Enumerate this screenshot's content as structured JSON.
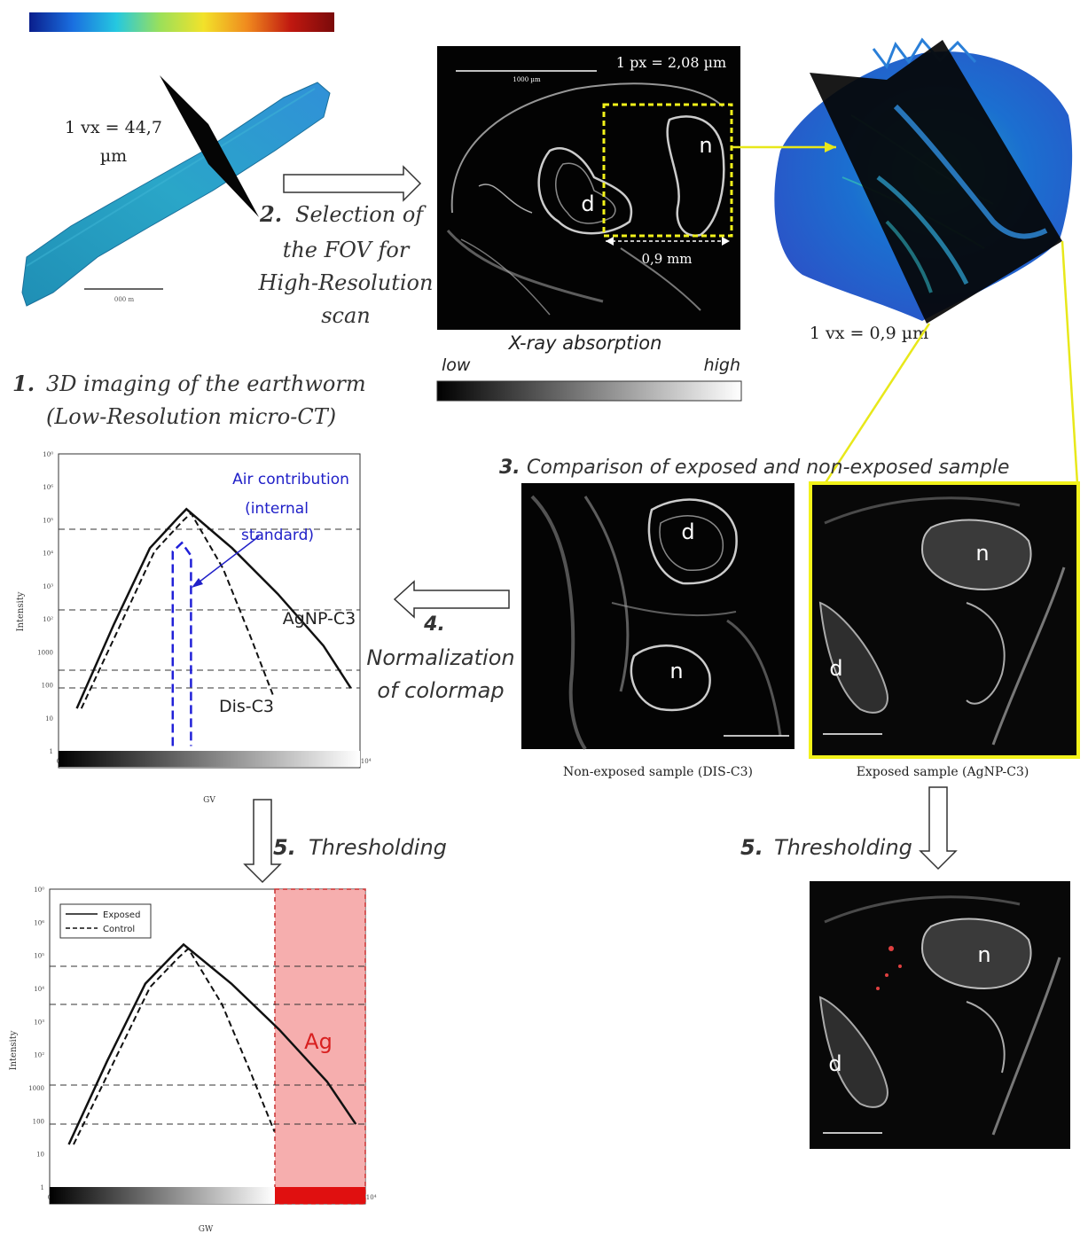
{
  "colorbar": {
    "stops": [
      "#0a1e8c",
      "#1a6fe0",
      "#25c8e0",
      "#9be05a",
      "#f2e22a",
      "#f08a1e",
      "#c01810",
      "#7a0a0a"
    ]
  },
  "low_res": {
    "voxel_label": "1 vx = 44,7",
    "voxel_unit": "µm",
    "scale_label": "000 m"
  },
  "step1": {
    "num": "1.",
    "line1": "3D imaging of the earthworm",
    "line2": "(Low-Resolution micro-CT)"
  },
  "step2": {
    "num": "2.",
    "line1": "Selection of",
    "line2": "the FOV for",
    "line3": "High-Resolution",
    "line4": "scan"
  },
  "slice_top": {
    "pixel_label": "1 px = 2,08 µm",
    "scale_label": "1000 µm",
    "fov_label": "0,9 mm",
    "label_d": "d",
    "label_n": "n"
  },
  "xray": {
    "title": "X-ray absorption",
    "low": "low",
    "high": "high"
  },
  "high_res": {
    "voxel_label": "1 vx = 0,9 µm"
  },
  "step3": {
    "num": "3.",
    "text": "Comparison of exposed and non-exposed sample"
  },
  "step4": {
    "num": "4.",
    "line1": "Normalization",
    "line2": "of colormap"
  },
  "step5": {
    "num": "5.",
    "text": "Thresholding"
  },
  "non_exposed": {
    "caption": "Non-exposed sample (DIS-C3)",
    "label_d": "d",
    "label_n": "n"
  },
  "exposed": {
    "caption": "Exposed sample (AgNP-C3)",
    "label_d": "d",
    "label_n": "n"
  },
  "thresholded": {
    "label_d": "d",
    "label_n": "n"
  },
  "chart_data": [
    {
      "type": "line",
      "ylabel": "Intensity",
      "xlabel": "GV",
      "y_scale": "log",
      "y_ticks": [
        "10⁰",
        "10⁶",
        "10⁵",
        "10⁴",
        "10³",
        "10²",
        "1000",
        "100",
        "10",
        "1"
      ],
      "x_ticks": [
        "0",
        "8000",
        "1.6·10⁴",
        "2.4·10⁴",
        "3.2·10⁴",
        "4·10⁴",
        "4.8·10⁴",
        "5.6·10⁴",
        "6.4·10⁴"
      ],
      "annotations": [
        "Air contribution",
        "(internal",
        "standard)"
      ],
      "series": [
        {
          "name": "AgNP-C3",
          "style": "solid",
          "x": [
            4000,
            12000,
            20000,
            26000,
            28000,
            38000,
            48000,
            58000,
            64000
          ],
          "y": [
            10,
            900,
            60000,
            300000,
            500000,
            60000,
            5000,
            300,
            30
          ]
        },
        {
          "name": "Dis-C3",
          "style": "dashed",
          "x": [
            5000,
            13000,
            21000,
            27000,
            29000,
            36000,
            42000,
            47000
          ],
          "y": [
            10,
            700,
            50000,
            250000,
            400000,
            20000,
            500,
            20
          ]
        }
      ],
      "air_peak": {
        "x": [
          25000,
          27000,
          29000
        ],
        "y": [
          50000,
          80000,
          40000
        ]
      }
    },
    {
      "type": "line",
      "ylabel": "Intensity",
      "xlabel": "GW",
      "y_scale": "log",
      "y_ticks": [
        "10⁰",
        "10⁶",
        "10⁵",
        "10⁴",
        "10³",
        "10²",
        "1000",
        "100",
        "10",
        "1"
      ],
      "x_ticks": [
        "0",
        "8000",
        "1.6·10⁴",
        "2.4·10⁴",
        "3.2·10⁴",
        "4·10⁴",
        "4.8·10⁴",
        "5.6·10⁴",
        "6.4·10⁴"
      ],
      "legend": [
        "Exposed",
        "Control"
      ],
      "threshold_label": "Ag",
      "series": [
        {
          "name": "Exposed",
          "style": "solid",
          "x": [
            4000,
            12000,
            20000,
            26000,
            28000,
            38000,
            48000,
            58000,
            64000
          ],
          "y": [
            10,
            900,
            60000,
            300000,
            500000,
            60000,
            5000,
            300,
            30
          ]
        },
        {
          "name": "Control",
          "style": "dashed",
          "x": [
            5000,
            13000,
            21000,
            27000,
            29000,
            36000,
            42000,
            47000
          ],
          "y": [
            10,
            700,
            50000,
            250000,
            400000,
            20000,
            500,
            20
          ]
        }
      ]
    }
  ]
}
